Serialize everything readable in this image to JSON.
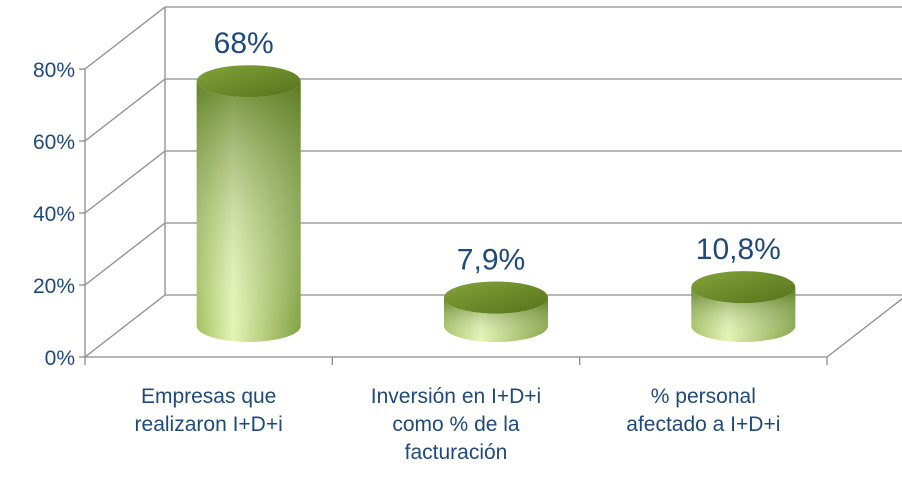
{
  "chart_data": {
    "type": "cylinder-bar",
    "categories": [
      "Empresas que realizaron I+D+i",
      "Inversión en I+D+i como % de la facturación",
      "% personal afectado a I+D+i"
    ],
    "values": [
      68,
      7.9,
      10.8
    ],
    "value_labels": [
      "68%",
      "7,9%",
      "10,8%"
    ],
    "color": "#6b8f2a",
    "ylim": [
      0,
      80
    ],
    "yticks": [
      {
        "value": 0,
        "label": "0%"
      },
      {
        "value": 20,
        "label": "20%"
      },
      {
        "value": 40,
        "label": "40%"
      },
      {
        "value": 60,
        "label": "60%"
      },
      {
        "value": 80,
        "label": "80%"
      }
    ],
    "grid": true
  }
}
